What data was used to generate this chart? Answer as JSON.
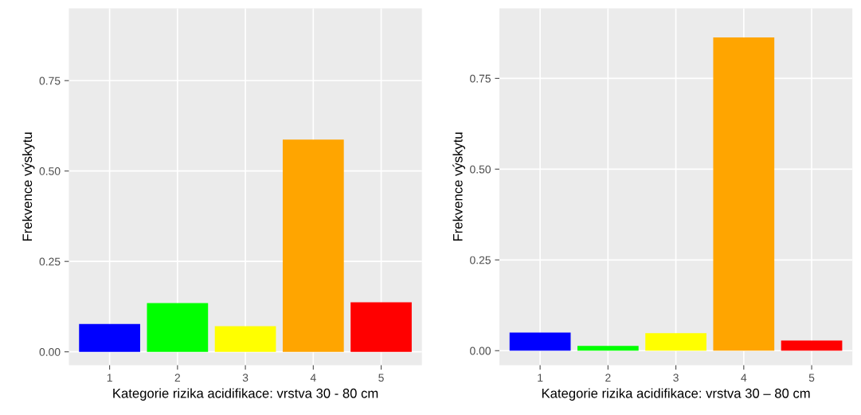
{
  "chart_data": [
    {
      "type": "bar",
      "xlabel": "Kategorie rizika acidifikace: vrstva 30 - 80 cm",
      "ylabel": "Frekvence výskytu",
      "categories": [
        "1",
        "2",
        "3",
        "4",
        "5"
      ],
      "values": [
        0.077,
        0.135,
        0.071,
        0.587,
        0.137
      ],
      "colors": [
        "#0000ff",
        "#00ff00",
        "#ffff00",
        "#ffa500",
        "#ff0000"
      ],
      "ylim": [
        -0.037,
        0.95
      ],
      "yticks": [
        {
          "value": 0,
          "label": "0.00"
        },
        {
          "value": 0.25,
          "label": "0.25"
        },
        {
          "value": 0.5,
          "label": "0.50"
        },
        {
          "value": 0.75,
          "label": "0.75"
        }
      ],
      "grid": true
    },
    {
      "type": "bar",
      "xlabel": "Kategorie rizika acidifikace: vrstva 30 – 80 cm",
      "ylabel": "Frekvence výskytu",
      "categories": [
        "1",
        "2",
        "3",
        "4",
        "5"
      ],
      "values": [
        0.05,
        0.013,
        0.048,
        0.863,
        0.028
      ],
      "colors": [
        "#0000ff",
        "#00ff00",
        "#ffff00",
        "#ffa500",
        "#ff0000"
      ],
      "ylim": [
        -0.04,
        0.943
      ],
      "yticks": [
        {
          "value": 0,
          "label": "0.00"
        },
        {
          "value": 0.25,
          "label": "0.25"
        },
        {
          "value": 0.5,
          "label": "0.50"
        },
        {
          "value": 0.75,
          "label": "0.75"
        }
      ],
      "grid": true
    }
  ]
}
